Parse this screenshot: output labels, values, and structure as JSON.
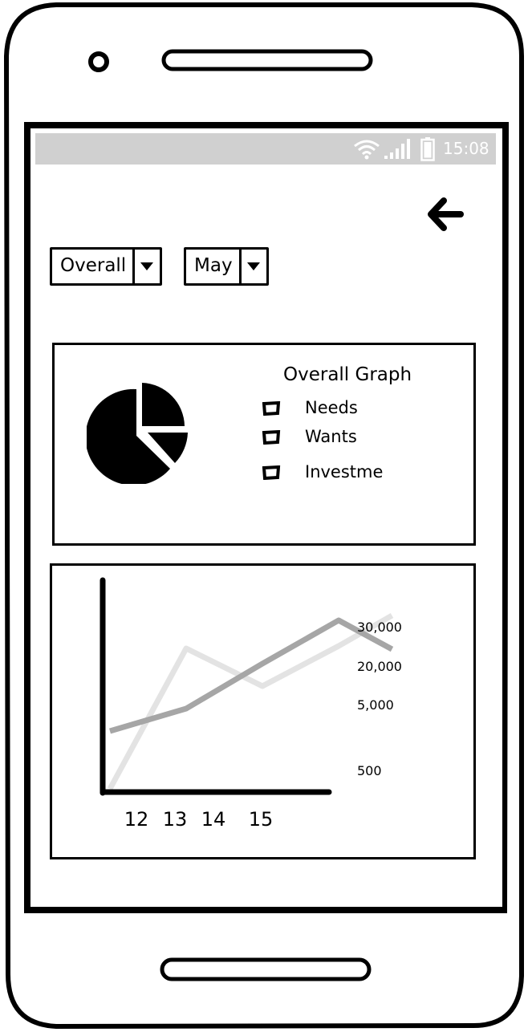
{
  "status_bar": {
    "time": "15:08",
    "icons": [
      "wifi-icon",
      "signal-icon",
      "battery-icon"
    ]
  },
  "back_button": {
    "icon": "arrow-left-icon"
  },
  "filters": {
    "category": {
      "selected": "Overall"
    },
    "month": {
      "selected": "May"
    }
  },
  "pie_panel": {
    "title": "Overall Graph",
    "legend": [
      {
        "label": "Needs"
      },
      {
        "label": "Wants"
      },
      {
        "label": "Investme"
      }
    ]
  },
  "chart_data": {
    "type": "line",
    "title": "",
    "xlabel": "",
    "ylabel": "",
    "x_tick_labels": [
      "12",
      "13",
      "14",
      "15"
    ],
    "y_tick_labels": [
      "30,000",
      "20,000",
      "5,000",
      "500"
    ],
    "series": [
      {
        "color": "#a6a6a6",
        "points": [
          [
            12,
            2000
          ],
          [
            13,
            5000
          ],
          [
            14,
            16000
          ],
          [
            15,
            30000
          ],
          [
            15.7,
            23000
          ]
        ]
      },
      {
        "color": "#e3e3e3",
        "points": [
          [
            12,
            0
          ],
          [
            13,
            24000
          ],
          [
            14,
            15000
          ],
          [
            15,
            20000
          ],
          [
            15.7,
            32000
          ]
        ]
      }
    ],
    "grid": false
  }
}
